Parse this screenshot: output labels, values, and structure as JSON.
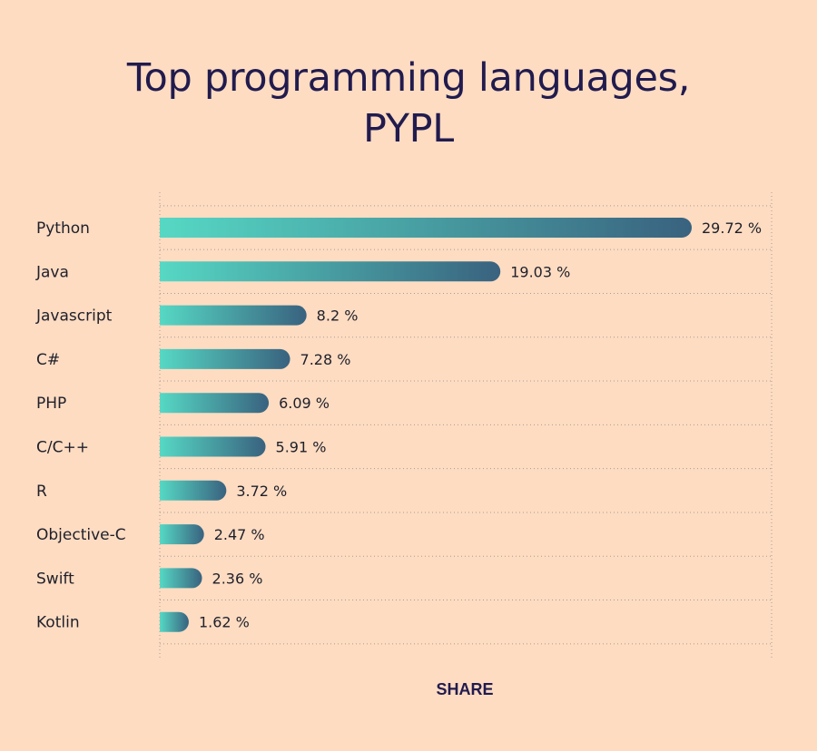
{
  "chart_data": {
    "type": "bar",
    "orientation": "horizontal",
    "title_lines": [
      "Top programming languages,",
      "PYPL"
    ],
    "categories": [
      "Python",
      "Java",
      "Javascript",
      "C#",
      "PHP",
      "C/C++",
      "R",
      "Objective-C",
      "Swift",
      "Kotlin"
    ],
    "values": [
      29.72,
      19.03,
      8.2,
      7.28,
      6.09,
      5.91,
      3.72,
      2.47,
      2.36,
      1.62
    ],
    "value_labels": [
      "29.72 %",
      "19.03 %",
      "8.2 %",
      "7.28 %",
      "6.09 %",
      "5.91 %",
      "3.72 %",
      "2.47 %",
      "2.36 %",
      "1.62 %"
    ],
    "xlim": [
      0,
      29.72
    ],
    "grid": true,
    "legend": "none",
    "colors": {
      "bar_gradient_start": "#56d8c4",
      "bar_gradient_end": "#39627f",
      "grid": "#a99c94",
      "text": "#1f1f2a",
      "title": "#211b4e",
      "background": "#fddcc2"
    }
  },
  "footer": {
    "share_label": "SHARE"
  }
}
